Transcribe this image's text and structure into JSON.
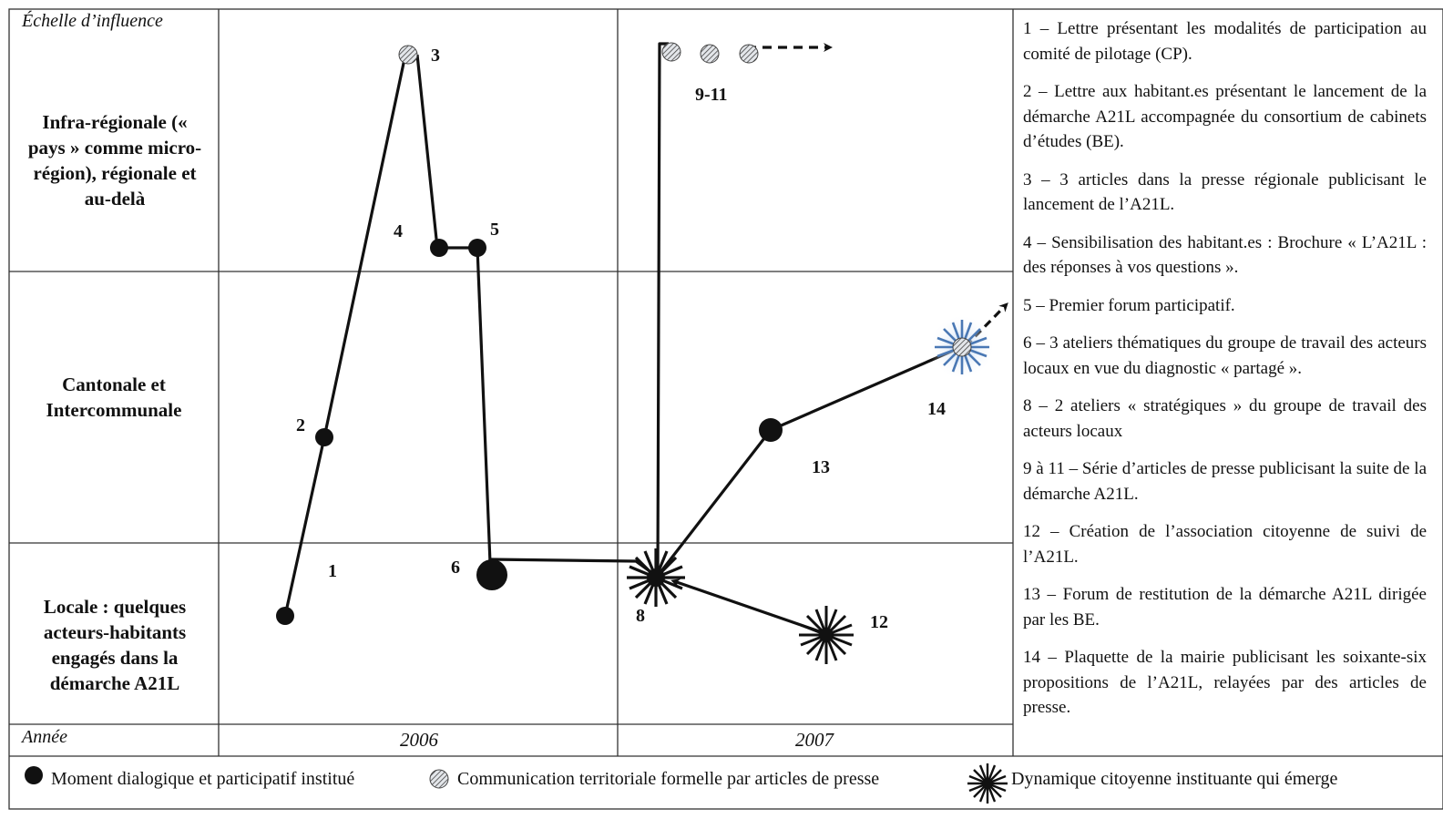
{
  "headers": {
    "scale": "Échelle d’influence",
    "year": "Année"
  },
  "levels": {
    "infra": "Infra-régionale (« pays » comme micro-région), régionale et au-delà",
    "cantonal": "Cantonale et Intercommunale",
    "locale": "Locale : quelques acteurs-habitants engagés dans la démarche A21L"
  },
  "years": [
    "2006",
    "2007"
  ],
  "point_labels": {
    "p1": "1",
    "p2": "2",
    "p3": "3",
    "p4": "4",
    "p5": "5",
    "p6": "6",
    "p8": "8",
    "p911": "9-11",
    "p12": "12",
    "p13": "13",
    "p14": "14"
  },
  "legend_items": [
    "1 – Lettre présentant les modalités de participation au comité de pilotage (CP).",
    "2 – Lettre aux habitant.es présentant le lancement de la démarche A21L accompagnée du consortium de cabinets d’études (BE).",
    "3 – 3 articles dans la presse régionale publicisant le lancement de l’A21L.",
    "4 – Sensibilisation des habitant.es : Brochure « L’A21L : des réponses à vos questions ».",
    "5 – Premier forum participatif.",
    "6 – 3 ateliers thématiques du groupe de travail des acteurs locaux en vue du diagnostic « partagé ».",
    "8 – 2 ateliers « stratégiques » du groupe de travail des acteurs locaux",
    "9 à 11 – Série d’articles de presse publicisant la suite de la démarche A21L.",
    "12 – Création de l’association citoyenne de suivi de l’A21L.",
    "13 – Forum de restitution de la démarche A21L dirigée par les BE.",
    "14 – Plaquette de la mairie publicisant les soixante-six propositions de l’A21L, relayées par des articles de presse."
  ],
  "symbol_legend": {
    "dot": "Moment dialogique et participatif institué",
    "hatched": "Communication territoriale formelle par articles de presse",
    "star": "Dynamique citoyenne instituante qui émerge"
  },
  "colors": {
    "line": "#111111",
    "grid": "#333333",
    "hatch_fill": "#d8dde3",
    "star_glow": "#8fb4e0"
  }
}
